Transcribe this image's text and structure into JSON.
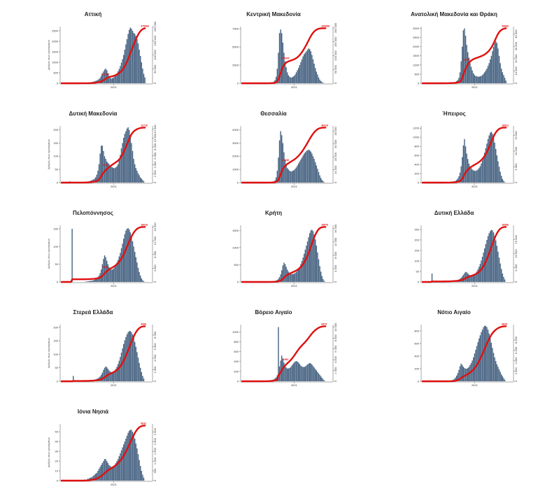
{
  "chart_data": [
    {
      "type": "bar+line",
      "title": "Αττική",
      "ylabel": "Αριθμός νέων κρουσμάτων",
      "xtick": "2021",
      "yticks_left": [
        "0",
        "500",
        "1000",
        "1500",
        "2000",
        "2500"
      ],
      "yticks_right": [
        "0",
        "50 000",
        "100 000",
        "150 000",
        "200 000"
      ],
      "left_max": 2700,
      "right_max": 200000,
      "cum_end": "375966",
      "mid_annotation": "102000",
      "bars": [
        0,
        0,
        0,
        0,
        0,
        1,
        0,
        0,
        0,
        0,
        0,
        0,
        0,
        0,
        2,
        3,
        3,
        3,
        4,
        5,
        6,
        8,
        10,
        14,
        20,
        30,
        45,
        60,
        75,
        90,
        110,
        130,
        160,
        200,
        260,
        350,
        450,
        560,
        650,
        700,
        620,
        480,
        350,
        260,
        220,
        240,
        280,
        330,
        400,
        480,
        570,
        680,
        820,
        980,
        1150,
        1350,
        1600,
        1850,
        2100,
        2350,
        2550,
        2650,
        2600,
        2500,
        2400,
        2350,
        2250,
        2100,
        1900,
        1600,
        1300,
        1000,
        700,
        450,
        280
      ]
    },
    {
      "type": "bar+line",
      "title": "Κεντρική Μακεδονία",
      "ylabel": "",
      "xtick": "2021",
      "yticks_left": [
        "0",
        "2500",
        "5000",
        "7500"
      ],
      "yticks_right": [
        "0",
        "50 000",
        "100 000",
        "150 000",
        "200 000"
      ],
      "left_max": 7800,
      "right_max": 205000,
      "cum_end": "196858",
      "mid_annotation": "87905",
      "bars": [
        0,
        0,
        0,
        0,
        0,
        0,
        0,
        0,
        0,
        0,
        0,
        0,
        0,
        0,
        0,
        0,
        0,
        0,
        0,
        0,
        0,
        10,
        20,
        40,
        60,
        80,
        110,
        150,
        250,
        450,
        900,
        2000,
        4200,
        6900,
        7400,
        6900,
        5600,
        4200,
        3000,
        2200,
        1500,
        1100,
        900,
        800,
        800,
        900,
        1000,
        1200,
        1500,
        1800,
        2100,
        2500,
        2900,
        3300,
        3700,
        4000,
        4200,
        4400,
        4600,
        4800,
        4700,
        4400,
        3900,
        3300,
        2700,
        2100,
        1600,
        1200,
        800,
        500,
        300,
        150,
        60,
        20,
        0
      ]
    },
    {
      "type": "bar+line",
      "title": "Ανατολική Μακεδονία και Θράκη",
      "ylabel": "",
      "xtick": "2021",
      "yticks_left": [
        "0",
        "500",
        "1000",
        "1500",
        "2000",
        "2500",
        "3000"
      ],
      "yticks_right": [
        "0",
        "10 000",
        "20 000",
        "30 000",
        "40 000"
      ],
      "left_max": 3100,
      "right_max": 46000,
      "cum_end": "39890",
      "mid_annotation": "15025",
      "bars": [
        0,
        0,
        0,
        0,
        0,
        0,
        0,
        0,
        0,
        0,
        0,
        0,
        0,
        0,
        0,
        0,
        0,
        5,
        8,
        10,
        12,
        15,
        20,
        25,
        30,
        35,
        40,
        45,
        60,
        80,
        120,
        180,
        300,
        600,
        1200,
        2000,
        2900,
        3000,
        2600,
        2100,
        1700,
        1400,
        1100,
        900,
        700,
        550,
        450,
        400,
        380,
        360,
        360,
        380,
        400,
        450,
        520,
        600,
        700,
        800,
        950,
        1100,
        1300,
        1500,
        1750,
        2000,
        2200,
        2300,
        2200,
        1900,
        1500,
        1100,
        800,
        600,
        450,
        300,
        150
      ]
    },
    {
      "type": "bar+line",
      "title": "Δυτική Μακεδονία",
      "ylabel": "Αριθμός νέων κρουσμάτων",
      "xtick": "2021",
      "yticks_left": [
        "0",
        "50",
        "100",
        "150",
        "200"
      ],
      "yticks_right": [
        "0",
        "2 000",
        "4 000",
        "6 000",
        "8 000",
        "10 000",
        "12 000"
      ],
      "left_max": 215,
      "right_max": 12700,
      "cum_end": "12710",
      "mid_annotation": "7320",
      "bars": [
        0,
        0,
        0,
        0,
        0,
        0,
        0,
        5,
        0,
        0,
        0,
        0,
        0,
        0,
        0,
        0,
        0,
        0,
        0,
        1,
        2,
        2,
        3,
        4,
        5,
        6,
        8,
        10,
        12,
        15,
        20,
        30,
        45,
        70,
        110,
        140,
        140,
        120,
        100,
        90,
        80,
        75,
        70,
        65,
        60,
        58,
        55,
        55,
        58,
        62,
        70,
        85,
        105,
        130,
        150,
        170,
        185,
        195,
        205,
        210,
        200,
        180,
        150,
        120,
        90,
        70,
        55,
        45,
        35,
        28,
        20,
        15,
        10,
        5,
        0
      ]
    },
    {
      "type": "bar+line",
      "title": "Θεσσαλία",
      "ylabel": "",
      "xtick": "2021",
      "yticks_left": [
        "0",
        "1000",
        "2000",
        "3000",
        "4000"
      ],
      "yticks_right": [
        "0",
        "10 000",
        "20 000",
        "30 000",
        "40 000"
      ],
      "left_max": 4300,
      "right_max": 44000,
      "cum_end": "40310",
      "mid_annotation": "25640",
      "bars": [
        0,
        0,
        0,
        0,
        0,
        0,
        0,
        0,
        0,
        0,
        0,
        0,
        0,
        0,
        0,
        0,
        0,
        0,
        0,
        0,
        0,
        10,
        15,
        20,
        25,
        30,
        40,
        60,
        100,
        180,
        400,
        900,
        1900,
        3200,
        3900,
        3600,
        3000,
        2300,
        1700,
        1300,
        1100,
        1000,
        900,
        850,
        850,
        900,
        950,
        1050,
        1150,
        1300,
        1450,
        1600,
        1750,
        1900,
        2050,
        2200,
        2300,
        2400,
        2450,
        2500,
        2450,
        2350,
        2200,
        2000,
        1800,
        1550,
        1300,
        1050,
        800,
        550,
        350,
        200,
        100,
        30,
        0
      ]
    },
    {
      "type": "bar+line",
      "title": "Ήπειρος",
      "ylabel": "",
      "xtick": "2021",
      "yticks_left": [
        "0",
        "200",
        "400",
        "600",
        "800",
        "1000",
        "1200"
      ],
      "yticks_right": [
        "0",
        "5 000",
        "10 000",
        "15 000"
      ],
      "left_max": 1250,
      "right_max": 18000,
      "cum_end": "16822",
      "mid_annotation": "",
      "bars": [
        0,
        0,
        0,
        0,
        0,
        0,
        0,
        0,
        0,
        0,
        0,
        0,
        0,
        0,
        0,
        0,
        0,
        0,
        0,
        0,
        0,
        5,
        5,
        10,
        10,
        15,
        20,
        25,
        30,
        40,
        60,
        90,
        140,
        220,
        360,
        560,
        820,
        960,
        800,
        640,
        520,
        420,
        360,
        320,
        290,
        270,
        260,
        260,
        270,
        290,
        320,
        360,
        420,
        490,
        570,
        660,
        760,
        860,
        960,
        1040,
        1100,
        1120,
        1080,
        1000,
        880,
        740,
        600,
        470,
        350,
        240,
        150,
        80,
        40,
        10,
        0
      ]
    },
    {
      "type": "bar+line",
      "title": "Πελοπόννησος",
      "ylabel": "Αριθμός νέων κρουσμάτων",
      "xtick": "2021",
      "yticks_left": [
        "0",
        "50",
        "100",
        "150"
      ],
      "yticks_right": [
        "0",
        "4 000",
        "8 000",
        "12 000",
        "16 000"
      ],
      "left_max": 160,
      "right_max": 16500,
      "cum_end": "16019",
      "mid_annotation": "2586",
      "bars": [
        0,
        0,
        0,
        0,
        0,
        0,
        0,
        0,
        0,
        150,
        0,
        0,
        0,
        0,
        0,
        0,
        0,
        0,
        0,
        0,
        0,
        1,
        1,
        2,
        2,
        3,
        3,
        4,
        5,
        6,
        8,
        10,
        14,
        18,
        25,
        35,
        50,
        65,
        75,
        70,
        60,
        50,
        42,
        38,
        35,
        35,
        38,
        42,
        48,
        55,
        62,
        72,
        82,
        95,
        108,
        122,
        135,
        145,
        150,
        152,
        148,
        140,
        128,
        115,
        100,
        85,
        70,
        55,
        40,
        28,
        18,
        10,
        5,
        2,
        0
      ]
    },
    {
      "type": "bar+line",
      "title": "Κρήτη",
      "ylabel": "",
      "xtick": "2021",
      "yticks_left": [
        "0",
        "500",
        "1000",
        "1500"
      ],
      "yticks_right": [
        "0",
        "4 000",
        "8 000",
        "12 000",
        "16 000"
      ],
      "left_max": 1650,
      "right_max": 17000,
      "cum_end": "15970",
      "mid_annotation": "",
      "bars": [
        0,
        0,
        0,
        0,
        0,
        0,
        0,
        0,
        0,
        0,
        0,
        0,
        0,
        0,
        0,
        0,
        0,
        0,
        0,
        0,
        1,
        2,
        3,
        4,
        5,
        8,
        10,
        14,
        20,
        28,
        40,
        60,
        90,
        140,
        220,
        340,
        480,
        560,
        520,
        440,
        360,
        300,
        260,
        240,
        230,
        230,
        240,
        260,
        290,
        330,
        380,
        440,
        520,
        610,
        710,
        820,
        940,
        1060,
        1180,
        1300,
        1420,
        1500,
        1520,
        1480,
        1380,
        1240,
        1060,
        860,
        660,
        460,
        300,
        170,
        80,
        30,
        0
      ]
    },
    {
      "type": "bar+line",
      "title": "Δυτική Ελλάδα",
      "ylabel": "",
      "xtick": "2021",
      "yticks_left": [
        "0",
        "50",
        "100",
        "150",
        "200",
        "250"
      ],
      "yticks_right": [
        "0",
        "5 000",
        "10 000",
        "15 000"
      ],
      "left_max": 270,
      "right_max": 20000,
      "cum_end": "19356",
      "mid_annotation": "",
      "bars": [
        0,
        0,
        0,
        0,
        0,
        0,
        0,
        0,
        40,
        0,
        0,
        0,
        0,
        0,
        0,
        0,
        0,
        0,
        0,
        1,
        1,
        1,
        2,
        2,
        3,
        3,
        4,
        5,
        6,
        7,
        8,
        10,
        12,
        15,
        20,
        26,
        34,
        42,
        48,
        46,
        40,
        35,
        32,
        30,
        30,
        32,
        36,
        42,
        50,
        60,
        72,
        86,
        102,
        120,
        140,
        160,
        180,
        200,
        218,
        232,
        242,
        248,
        246,
        236,
        220,
        198,
        172,
        144,
        116,
        88,
        62,
        40,
        24,
        12,
        0
      ]
    },
    {
      "type": "bar+line",
      "title": "Στερεά Ελλάδα",
      "ylabel": "Αριθμός νέων κρουσμάτων",
      "xtick": "2021",
      "yticks_left": [
        "0",
        "50",
        "100",
        "150",
        "200"
      ],
      "yticks_right": [
        "0",
        "2 000",
        "4 000",
        "6 000",
        "8 000"
      ],
      "left_max": 210,
      "right_max": 9800,
      "cum_end": "9496",
      "mid_annotation": "",
      "bars": [
        0,
        0,
        0,
        0,
        0,
        0,
        0,
        0,
        0,
        0,
        20,
        0,
        0,
        0,
        0,
        0,
        0,
        0,
        0,
        1,
        1,
        1,
        2,
        2,
        2,
        3,
        3,
        4,
        5,
        6,
        7,
        9,
        11,
        14,
        18,
        24,
        32,
        42,
        50,
        55,
        52,
        46,
        40,
        36,
        34,
        34,
        36,
        40,
        46,
        54,
        64,
        76,
        90,
        106,
        122,
        138,
        152,
        164,
        174,
        182,
        186,
        186,
        182,
        174,
        162,
        146,
        128,
        108,
        88,
        68,
        50,
        34,
        20,
        10,
        0
      ]
    },
    {
      "type": "bar+line",
      "title": "Βόρειο Αιγαίο",
      "ylabel": "",
      "xtick": "2021",
      "yticks_left": [
        "0",
        "200",
        "400",
        "600",
        "800",
        "1000"
      ],
      "yticks_right": [
        "0",
        "2 000",
        "4 000",
        "6 000",
        "8 000",
        "10 000"
      ],
      "left_max": 1150,
      "right_max": 10500,
      "cum_end": "6479",
      "mid_annotation": "2382",
      "bars": [
        0,
        0,
        0,
        0,
        0,
        0,
        0,
        0,
        0,
        0,
        0,
        0,
        0,
        0,
        0,
        0,
        0,
        0,
        0,
        0,
        5,
        5,
        10,
        10,
        15,
        20,
        25,
        30,
        40,
        60,
        80,
        120,
        1100,
        300,
        420,
        520,
        460,
        380,
        320,
        280,
        260,
        260,
        270,
        290,
        320,
        350,
        380,
        400,
        410,
        400,
        380,
        350,
        320,
        300,
        290,
        290,
        300,
        320,
        340,
        360,
        370,
        360,
        340,
        310,
        280,
        250,
        220,
        190,
        160,
        130,
        100,
        70,
        40,
        20,
        0
      ]
    },
    {
      "type": "bar+line",
      "title": "Νότιο Αιγαίο",
      "ylabel": "",
      "xtick": "2021",
      "yticks_left": [
        "0",
        "200",
        "400",
        "600",
        "800"
      ],
      "yticks_right": [
        "0",
        "2 000",
        "4 000",
        "6 000",
        "8 000"
      ],
      "left_max": 900,
      "right_max": 11000,
      "cum_end": "6829",
      "mid_annotation": "",
      "bars": [
        0,
        0,
        0,
        0,
        0,
        0,
        0,
        0,
        0,
        0,
        0,
        0,
        0,
        0,
        0,
        0,
        0,
        0,
        0,
        0,
        1,
        2,
        3,
        5,
        8,
        12,
        18,
        25,
        40,
        60,
        90,
        130,
        180,
        240,
        280,
        260,
        230,
        210,
        200,
        200,
        210,
        230,
        260,
        290,
        330,
        380,
        440,
        500,
        560,
        620,
        680,
        730,
        780,
        820,
        860,
        880,
        880,
        860,
        820,
        760,
        690,
        610,
        530,
        450,
        380,
        320,
        270,
        230,
        190,
        150,
        110,
        80,
        50,
        25,
        0
      ]
    },
    {
      "type": "bar+line",
      "title": "Ιόνια Νησιά",
      "ylabel": "Αριθμός νέων κρουσμάτων",
      "xtick": "2021",
      "yticks_left": [
        "0",
        "10",
        "20",
        "30",
        "40",
        "50"
      ],
      "yticks_right": [
        "0",
        "500",
        "1 000",
        "1 500",
        "2 000",
        "2 500"
      ],
      "left_max": 58,
      "right_max": 2900,
      "cum_end": "5632",
      "mid_annotation": "",
      "bars": [
        0,
        0,
        0,
        0,
        0,
        0,
        0,
        0,
        0,
        0,
        0,
        0,
        0,
        0,
        0,
        0,
        0,
        0,
        0,
        0,
        1,
        1,
        1,
        2,
        2,
        3,
        3,
        4,
        5,
        6,
        7,
        8,
        10,
        12,
        14,
        16,
        18,
        20,
        22,
        22,
        20,
        18,
        16,
        15,
        14,
        14,
        15,
        16,
        18,
        20,
        22,
        25,
        28,
        31,
        34,
        37,
        40,
        43,
        46,
        49,
        51,
        52,
        52,
        50,
        47,
        43,
        38,
        33,
        27,
        21,
        15,
        10,
        6,
        3,
        0
      ]
    }
  ],
  "colors": {
    "bar": "#4a6584",
    "line": "#e01010"
  }
}
